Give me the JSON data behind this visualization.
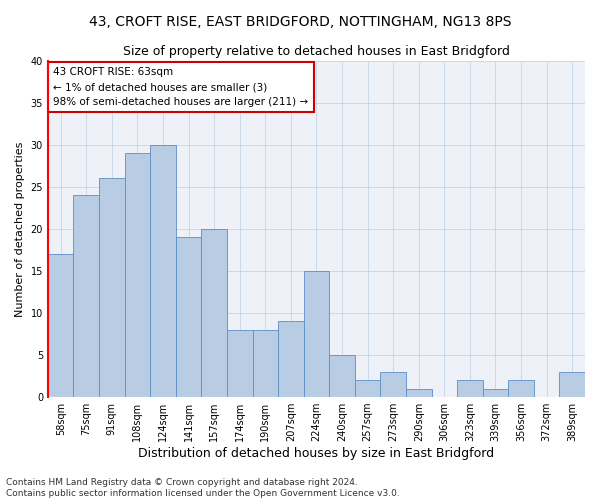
{
  "title1": "43, CROFT RISE, EAST BRIDGFORD, NOTTINGHAM, NG13 8PS",
  "title2": "Size of property relative to detached houses in East Bridgford",
  "xlabel": "Distribution of detached houses by size in East Bridgford",
  "ylabel": "Number of detached properties",
  "footnote1": "Contains HM Land Registry data © Crown copyright and database right 2024.",
  "footnote2": "Contains public sector information licensed under the Open Government Licence v3.0.",
  "annotation_line1": "43 CROFT RISE: 63sqm",
  "annotation_line2": "← 1% of detached houses are smaller (3)",
  "annotation_line3": "98% of semi-detached houses are larger (211) →",
  "categories": [
    "58sqm",
    "75sqm",
    "91sqm",
    "108sqm",
    "124sqm",
    "141sqm",
    "157sqm",
    "174sqm",
    "190sqm",
    "207sqm",
    "224sqm",
    "240sqm",
    "257sqm",
    "273sqm",
    "290sqm",
    "306sqm",
    "323sqm",
    "339sqm",
    "356sqm",
    "372sqm",
    "389sqm"
  ],
  "values": [
    17,
    24,
    26,
    29,
    30,
    19,
    20,
    8,
    8,
    9,
    15,
    5,
    2,
    3,
    1,
    0,
    2,
    1,
    2,
    0,
    3
  ],
  "bar_color": "#b8cce4",
  "bar_edge_color": "#5b8dc8",
  "annotation_box_color": "#cc0000",
  "bg_color": "#eef2f8",
  "grid_color": "#c5d5e8",
  "ylim": [
    0,
    40
  ],
  "yticks": [
    0,
    5,
    10,
    15,
    20,
    25,
    30,
    35,
    40
  ],
  "title1_fontsize": 10,
  "title2_fontsize": 9,
  "xlabel_fontsize": 9,
  "ylabel_fontsize": 8,
  "annotation_fontsize": 7.5,
  "tick_fontsize": 7,
  "footnote_fontsize": 6.5
}
